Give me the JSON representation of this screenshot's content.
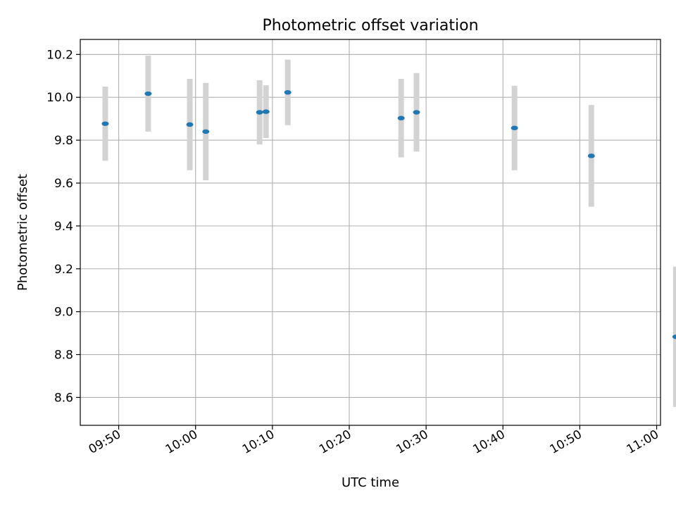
{
  "chart_data": {
    "type": "scatter",
    "title": "Photometric offset variation",
    "xlabel": "UTC time",
    "ylabel": "Photometric offset",
    "xlim": [
      "09:45:00",
      "11:00:30"
    ],
    "ylim": [
      8.47,
      10.27
    ],
    "grid": true,
    "x_ticks": [
      "09:50",
      "10:00",
      "10:10",
      "10:20",
      "10:30",
      "10:40",
      "10:50",
      "11:00"
    ],
    "y_ticks": [
      "8.6",
      "8.8",
      "9.0",
      "9.2",
      "9.4",
      "9.6",
      "9.8",
      "10.0",
      "10.2"
    ],
    "series": [
      {
        "x": [
          "09:48:15",
          "09:53:50",
          "09:59:15",
          "10:01:20",
          "10:08:20",
          "10:09:10",
          "10:12:00",
          "10:26:45",
          "10:28:45",
          "10:41:30",
          "10:51:30",
          "11:02:30"
        ],
        "y": [
          9.877,
          10.017,
          9.873,
          9.84,
          9.93,
          9.933,
          10.023,
          9.903,
          9.93,
          9.857,
          9.727,
          8.883
        ],
        "yerr": [
          0.173,
          0.177,
          0.213,
          0.227,
          0.15,
          0.123,
          0.153,
          0.183,
          0.183,
          0.197,
          0.237,
          0.327
        ]
      }
    ],
    "colors": {
      "marker": "#1f77b4",
      "errorbar": "#d3d3d3",
      "grid": "#b0b0b0",
      "axes": "#000000"
    }
  }
}
